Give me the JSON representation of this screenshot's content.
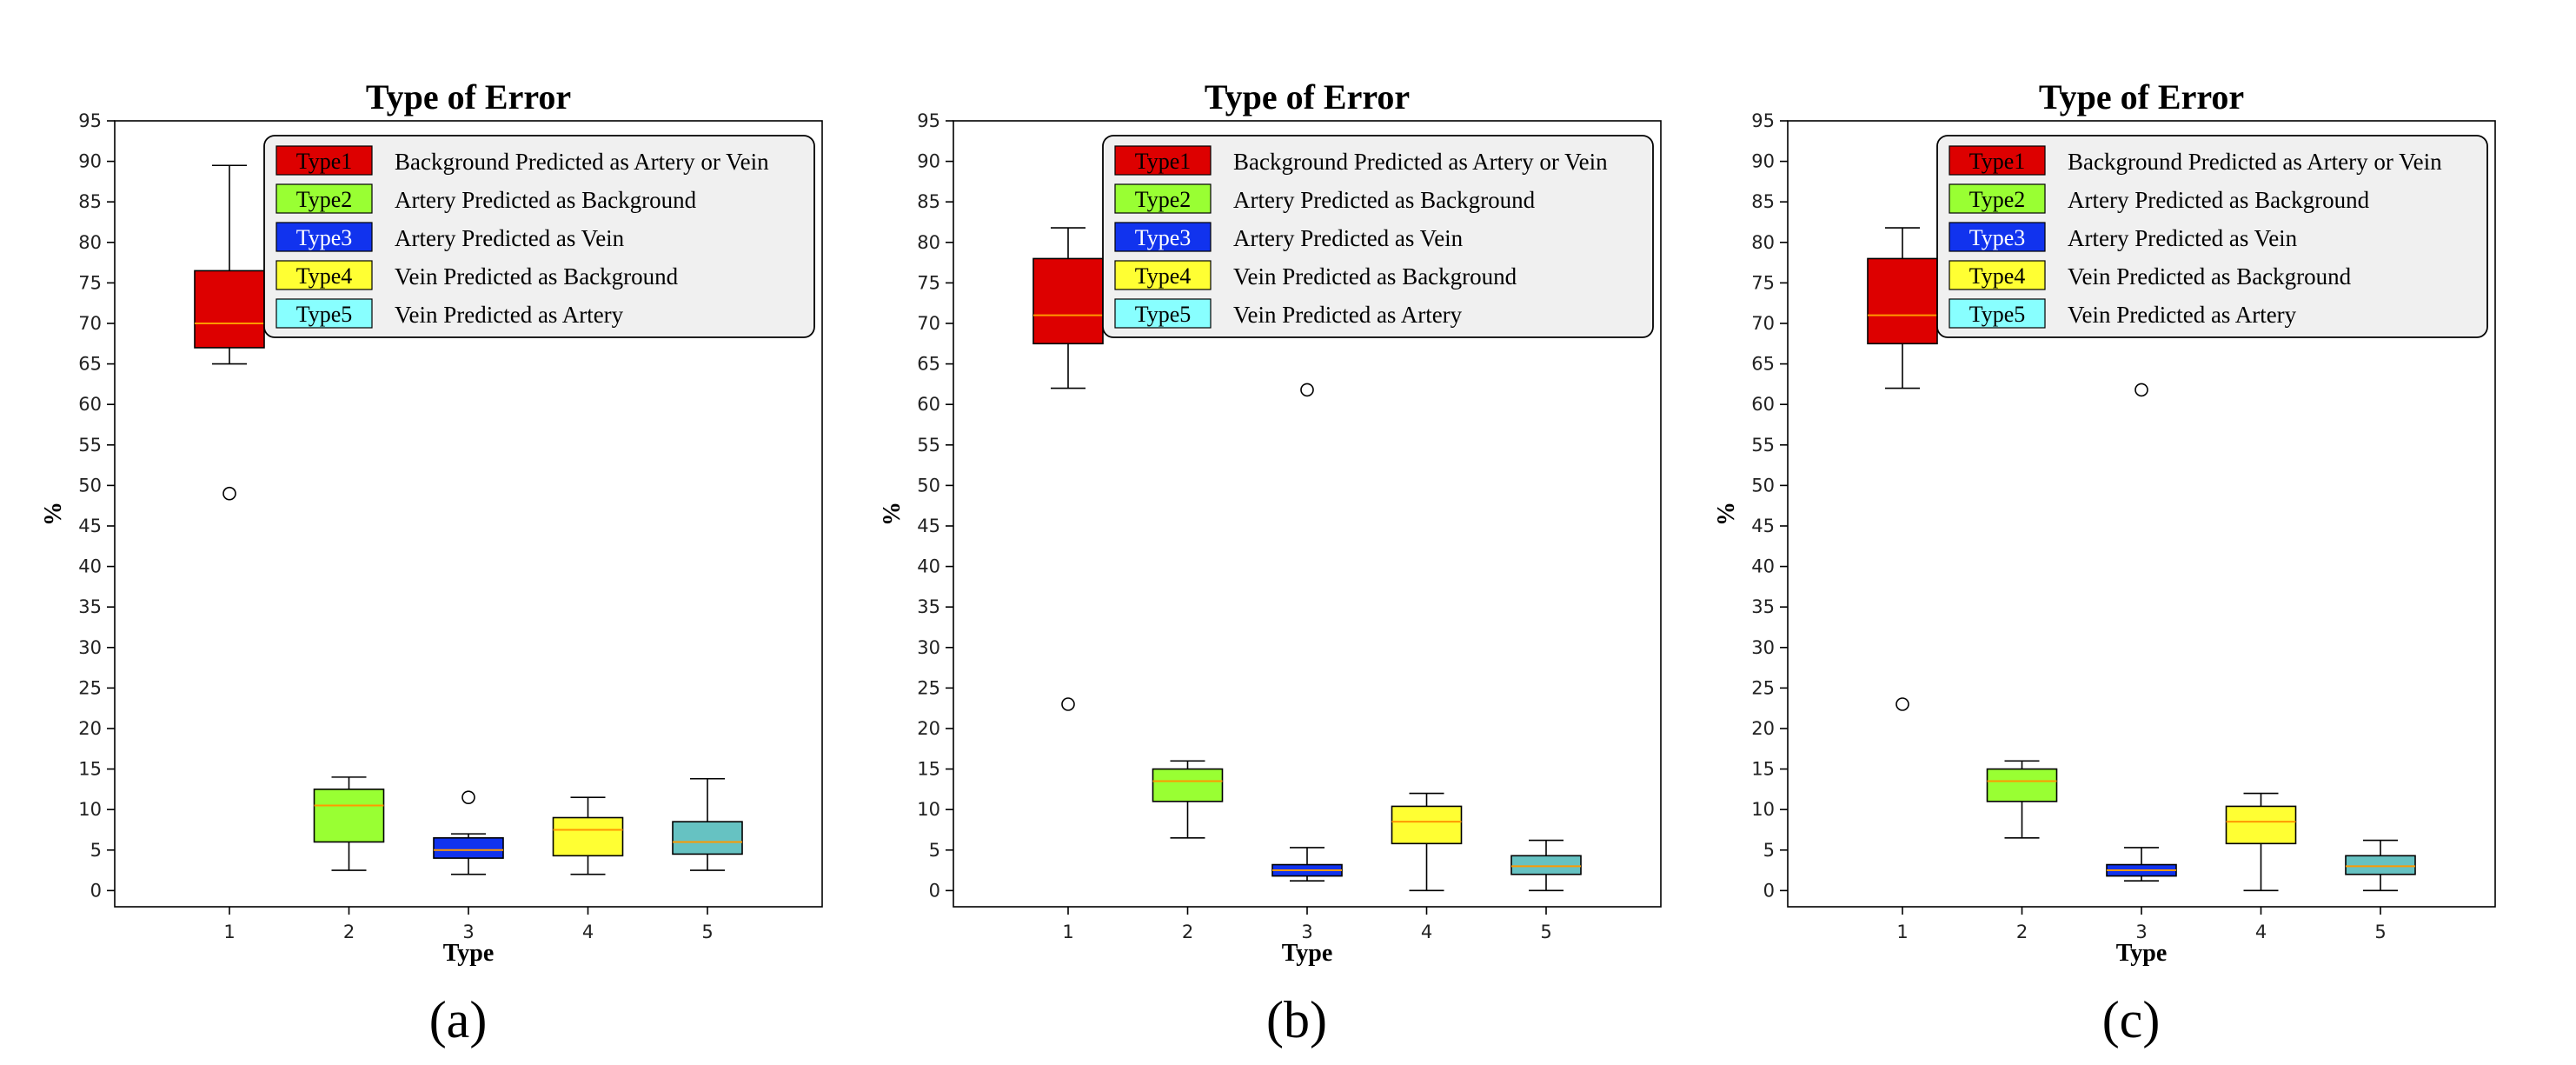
{
  "chart_data": [
    {
      "type": "box",
      "title": "Type of Error",
      "xlabel": "Type",
      "ylabel": "%",
      "caption": "(a)",
      "ylim": [
        -2,
        95
      ],
      "yticks": [
        0,
        5,
        10,
        15,
        20,
        25,
        30,
        35,
        40,
        45,
        50,
        55,
        60,
        65,
        70,
        75,
        80,
        85,
        90,
        95
      ],
      "categories": [
        "1",
        "2",
        "3",
        "4",
        "5"
      ],
      "legend": {
        "position": "top-right",
        "entries": [
          {
            "key": "Type1",
            "label": "Background Predicted as Artery or Vein",
            "color": "#dd0000",
            "text_color": "#000000"
          },
          {
            "key": "Type2",
            "label": "Artery Predicted as Background",
            "color": "#99ff33",
            "text_color": "#000000"
          },
          {
            "key": "Type3",
            "label": "Artery Predicted as Vein",
            "color": "#1133ee",
            "text_color": "#ffffff"
          },
          {
            "key": "Type4",
            "label": "Vein Predicted as Background",
            "color": "#ffff33",
            "text_color": "#000000"
          },
          {
            "key": "Type5",
            "label": "Vein Predicted as Artery",
            "color": "#88ffff",
            "text_color": "#000000"
          }
        ]
      },
      "boxes": [
        {
          "category": "1",
          "whisker_low": 65,
          "q1": 67,
          "median": 70,
          "q3": 76.5,
          "whisker_high": 89.5,
          "outliers": [
            49
          ],
          "color": "#dd0000"
        },
        {
          "category": "2",
          "whisker_low": 2.5,
          "q1": 6,
          "median": 10.5,
          "q3": 12.5,
          "whisker_high": 14,
          "outliers": [],
          "color": "#99ff33"
        },
        {
          "category": "3",
          "whisker_low": 2,
          "q1": 4,
          "median": 5,
          "q3": 6.5,
          "whisker_high": 7,
          "outliers": [
            11.5
          ],
          "color": "#1133ee"
        },
        {
          "category": "4",
          "whisker_low": 2,
          "q1": 4.3,
          "median": 7.5,
          "q3": 9,
          "whisker_high": 11.5,
          "outliers": [],
          "color": "#ffff33"
        },
        {
          "category": "5",
          "whisker_low": 2.5,
          "q1": 4.5,
          "median": 6,
          "q3": 8.5,
          "whisker_high": 13.8,
          "outliers": [],
          "color": "#66c2c2"
        }
      ]
    },
    {
      "type": "box",
      "title": "Type of Error",
      "xlabel": "Type",
      "ylabel": "%",
      "caption": "(b)",
      "ylim": [
        -2,
        95
      ],
      "yticks": [
        0,
        5,
        10,
        15,
        20,
        25,
        30,
        35,
        40,
        45,
        50,
        55,
        60,
        65,
        70,
        75,
        80,
        85,
        90,
        95
      ],
      "categories": [
        "1",
        "2",
        "3",
        "4",
        "5"
      ],
      "legend": {
        "position": "top-right",
        "entries": [
          {
            "key": "Type1",
            "label": "Background Predicted as Artery or Vein",
            "color": "#dd0000",
            "text_color": "#000000"
          },
          {
            "key": "Type2",
            "label": "Artery Predicted as Background",
            "color": "#99ff33",
            "text_color": "#000000"
          },
          {
            "key": "Type3",
            "label": "Artery Predicted as Vein",
            "color": "#1133ee",
            "text_color": "#ffffff"
          },
          {
            "key": "Type4",
            "label": "Vein Predicted as Background",
            "color": "#ffff33",
            "text_color": "#000000"
          },
          {
            "key": "Type5",
            "label": "Vein Predicted as Artery",
            "color": "#88ffff",
            "text_color": "#000000"
          }
        ]
      },
      "boxes": [
        {
          "category": "1",
          "whisker_low": 62,
          "q1": 67.5,
          "median": 71,
          "q3": 78,
          "whisker_high": 81.8,
          "outliers": [
            23
          ],
          "color": "#dd0000"
        },
        {
          "category": "2",
          "whisker_low": 6.5,
          "q1": 11,
          "median": 13.5,
          "q3": 15,
          "whisker_high": 16,
          "outliers": [],
          "color": "#99ff33"
        },
        {
          "category": "3",
          "whisker_low": 1.2,
          "q1": 1.8,
          "median": 2.5,
          "q3": 3.2,
          "whisker_high": 5.3,
          "outliers": [
            61.8
          ],
          "color": "#1133ee"
        },
        {
          "category": "4",
          "whisker_low": 0,
          "q1": 5.8,
          "median": 8.5,
          "q3": 10.4,
          "whisker_high": 12,
          "outliers": [],
          "color": "#ffff33"
        },
        {
          "category": "5",
          "whisker_low": 0,
          "q1": 2,
          "median": 3,
          "q3": 4.3,
          "whisker_high": 6.2,
          "outliers": [],
          "color": "#66c2c2"
        }
      ]
    },
    {
      "type": "box",
      "title": "Type of Error",
      "xlabel": "Type",
      "ylabel": "%",
      "caption": "(c)",
      "ylim": [
        -2,
        95
      ],
      "yticks": [
        0,
        5,
        10,
        15,
        20,
        25,
        30,
        35,
        40,
        45,
        50,
        55,
        60,
        65,
        70,
        75,
        80,
        85,
        90,
        95
      ],
      "categories": [
        "1",
        "2",
        "3",
        "4",
        "5"
      ],
      "legend": {
        "position": "top-right",
        "entries": [
          {
            "key": "Type1",
            "label": "Background Predicted as Artery or Vein",
            "color": "#dd0000",
            "text_color": "#000000"
          },
          {
            "key": "Type2",
            "label": "Artery Predicted as Background",
            "color": "#99ff33",
            "text_color": "#000000"
          },
          {
            "key": "Type3",
            "label": "Artery Predicted as Vein",
            "color": "#1133ee",
            "text_color": "#ffffff"
          },
          {
            "key": "Type4",
            "label": "Vein Predicted as Background",
            "color": "#ffff33",
            "text_color": "#000000"
          },
          {
            "key": "Type5",
            "label": "Vein Predicted as Artery",
            "color": "#88ffff",
            "text_color": "#000000"
          }
        ]
      },
      "boxes": [
        {
          "category": "1",
          "whisker_low": 62,
          "q1": 67.5,
          "median": 71,
          "q3": 78,
          "whisker_high": 81.8,
          "outliers": [
            23
          ],
          "color": "#dd0000"
        },
        {
          "category": "2",
          "whisker_low": 6.5,
          "q1": 11,
          "median": 13.5,
          "q3": 15,
          "whisker_high": 16,
          "outliers": [],
          "color": "#99ff33"
        },
        {
          "category": "3",
          "whisker_low": 1.2,
          "q1": 1.8,
          "median": 2.5,
          "q3": 3.2,
          "whisker_high": 5.3,
          "outliers": [
            61.8
          ],
          "color": "#1133ee"
        },
        {
          "category": "4",
          "whisker_low": 0,
          "q1": 5.8,
          "median": 8.5,
          "q3": 10.4,
          "whisker_high": 12,
          "outliers": [],
          "color": "#ffff33"
        },
        {
          "category": "5",
          "whisker_low": 0,
          "q1": 2,
          "median": 3,
          "q3": 4.3,
          "whisker_high": 6.2,
          "outliers": [],
          "color": "#66c2c2"
        }
      ]
    }
  ],
  "style": {
    "median_color": "#ff9900",
    "legend_background": "#f0f0f0"
  }
}
